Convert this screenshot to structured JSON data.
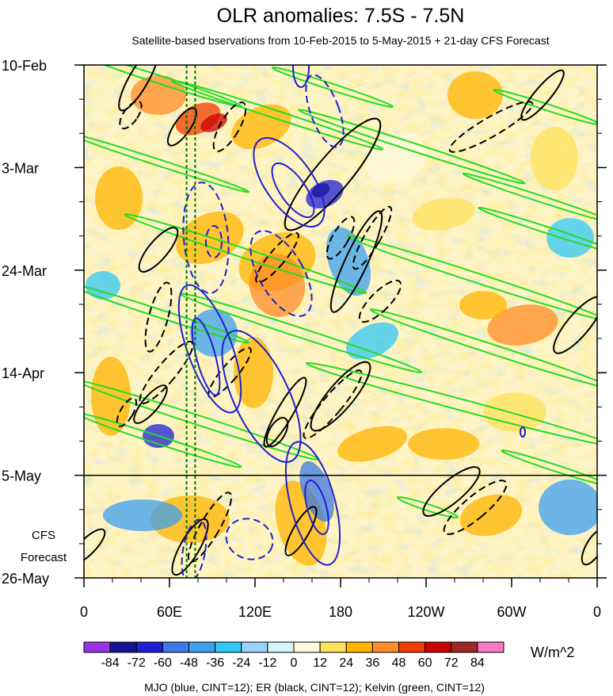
{
  "chart_data": {
    "type": "heatmap",
    "title": "OLR anomalies: 7.5S - 7.5N",
    "subtitle": "Satellite-based bservations from 10-Feb-2015 to 5-May-2015 + 21-day CFS Forecast",
    "x_ticks": [
      "0",
      "60E",
      "120E",
      "180",
      "120W",
      "60W",
      "0"
    ],
    "x_tick_lon": [
      0,
      60,
      120,
      180,
      240,
      300,
      360
    ],
    "xlim": [
      0,
      360
    ],
    "y_ticks": [
      "10-Feb",
      "3-Mar",
      "24-Mar",
      "14-Apr",
      "5-May",
      "26-May"
    ],
    "y_tick_day": [
      0,
      21,
      42,
      63,
      84,
      105
    ],
    "ylim_days": [
      0,
      105
    ],
    "obs_end_label": "5-May",
    "forecast_label_line1": "CFS",
    "forecast_label_line2": "Forecast",
    "colorbar": {
      "labels": [
        "-84",
        "-72",
        "-60",
        "-48",
        "-36",
        "-24",
        "-12",
        "0",
        "12",
        "24",
        "36",
        "48",
        "60",
        "72",
        "84"
      ],
      "colors": [
        "#9a33e6",
        "#141496",
        "#1e1ed2",
        "#3c78e6",
        "#3ca0f0",
        "#32c8f5",
        "#96d2fa",
        "#d2f5fa",
        "#fffade",
        "#ffe15a",
        "#ffb400",
        "#ff8c28",
        "#f03c00",
        "#c80000",
        "#a02828",
        "#fa78c8"
      ],
      "units": "W/m^2"
    },
    "footer": "MJO (blue, CINT=12); ER (black, CINT=12); Kelvin (green, CINT=12)",
    "contour_colors": {
      "mjo": "#2020d0",
      "er": "#000000",
      "kelvin": "#22dd22",
      "marker": "#007a00"
    },
    "marker_lines_lon": [
      72,
      78
    ]
  }
}
